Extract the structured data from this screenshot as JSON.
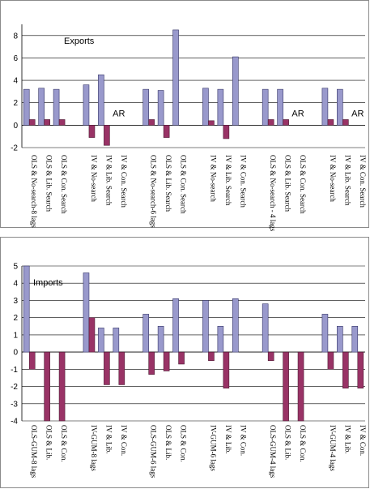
{
  "chart_data": [
    {
      "type": "bar",
      "title": "Exports",
      "ylim": [
        -2,
        9
      ],
      "yticks": [
        -2,
        0,
        2,
        4,
        6,
        8
      ],
      "grid": true,
      "categories": [
        "OLS & No-search-8 lags",
        "OLS & Lib. Search",
        "OLS & Con. Search",
        "",
        "IV & No-search",
        "IV & Lib. Search",
        "IV & Con. Search",
        "",
        "OLS & No-search-6 lags",
        "OLS & Lib. Search",
        "OLS & Con. Search",
        "",
        "IV & No-search",
        "IV & Lib. Search",
        "IV & Con. Search",
        "",
        "OLS & No-search - 4 lags",
        "OLS & Lib. Search",
        "OLS & Con. Search",
        "",
        "IV & No-search",
        "IV & Lib. Search",
        "IV & Con. Search"
      ],
      "series": [
        {
          "color": "#9999cc",
          "values": [
            3.2,
            3.3,
            3.2,
            null,
            3.6,
            4.5,
            null,
            null,
            3.2,
            3.1,
            8.5,
            null,
            3.3,
            3.2,
            6.1,
            null,
            3.2,
            3.2,
            null,
            null,
            3.3,
            3.2,
            null
          ]
        },
        {
          "color": "#993366",
          "values": [
            0.5,
            0.5,
            0.5,
            null,
            -1.1,
            -1.8,
            null,
            null,
            0.5,
            -1.1,
            null,
            null,
            0.4,
            -1.2,
            null,
            null,
            0.5,
            0.5,
            null,
            null,
            0.5,
            0.5,
            null
          ]
        }
      ],
      "annotations": [
        {
          "text": "AR",
          "category": 6
        },
        {
          "text": "AR",
          "category": 18
        },
        {
          "text": "AR",
          "category": 22
        }
      ]
    },
    {
      "type": "bar",
      "title": "Imports",
      "ylim": [
        -4,
        5
      ],
      "yticks": [
        -4,
        -3,
        -2,
        -1,
        0,
        1,
        2,
        3,
        4,
        5
      ],
      "grid": true,
      "categories": [
        "OLS-GUM-8 lags",
        "OLS & Lib.",
        "OLS & Con.",
        "",
        "IV-GUM-8 lags",
        "IV & Lib.",
        "IV & Con.",
        "",
        "OLS-GUM-6 lags",
        "OLS & Lib.",
        "OLS & Con.",
        "",
        "IV-GUM-6 lags",
        "IV & Lib.",
        "IV & Con.",
        "",
        "OLS-GUM-4 lags",
        "OLS & Lib.",
        "OLS & Con.",
        "",
        "IV-GUM-4 lags",
        "IV & Lib.",
        "IV & Con."
      ],
      "series": [
        {
          "color": "#9999cc",
          "values": [
            5.0,
            null,
            null,
            null,
            4.6,
            1.4,
            1.4,
            null,
            2.2,
            1.5,
            3.1,
            null,
            3.0,
            1.5,
            3.1,
            null,
            2.8,
            null,
            null,
            null,
            2.2,
            1.5,
            1.5
          ]
        },
        {
          "color": "#993366",
          "values": [
            -1.0,
            -4.0,
            -4.0,
            null,
            2.0,
            -1.9,
            -1.9,
            null,
            -1.3,
            -1.1,
            -0.7,
            null,
            -0.5,
            -2.1,
            null,
            null,
            -0.5,
            -4.0,
            -4.0,
            null,
            -1.0,
            -2.1,
            -2.1
          ]
        }
      ],
      "annotations": []
    }
  ]
}
